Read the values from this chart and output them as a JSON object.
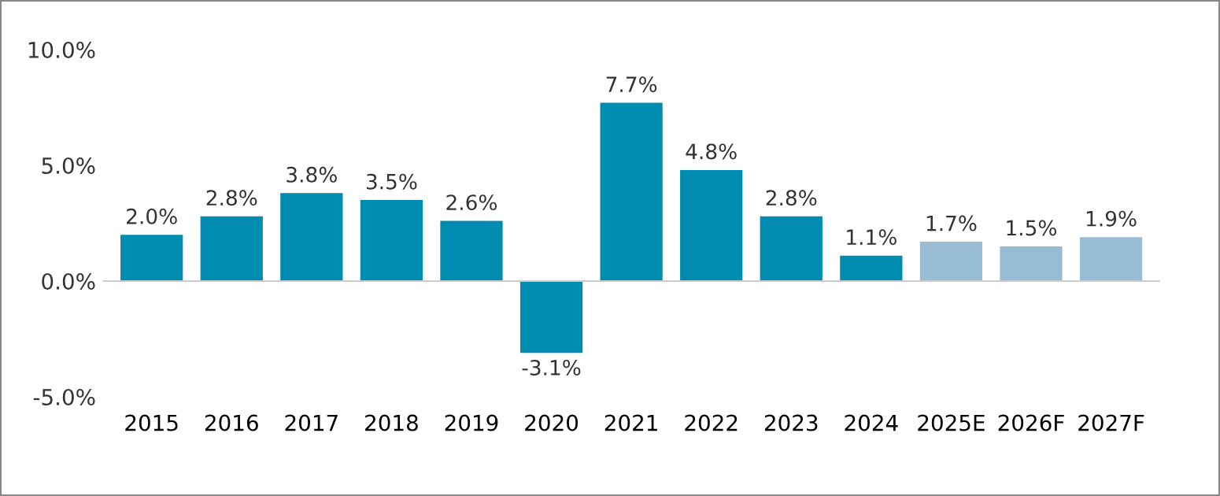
{
  "chart_data": {
    "type": "bar",
    "categories": [
      "2015",
      "2016",
      "2017",
      "2018",
      "2019",
      "2020",
      "2021",
      "2022",
      "2023",
      "2024",
      "2025E",
      "2026F",
      "2027F"
    ],
    "values": [
      2.0,
      2.8,
      3.8,
      3.5,
      2.6,
      -3.1,
      7.7,
      4.8,
      2.8,
      1.1,
      1.7,
      1.5,
      1.9
    ],
    "colors": [
      "#008bb0",
      "#008bb0",
      "#008bb0",
      "#008bb0",
      "#008bb0",
      "#008bb0",
      "#008bb0",
      "#008bb0",
      "#008bb0",
      "#008bb0",
      "#98bcd4",
      "#98bcd4",
      "#98bcd4"
    ],
    "value_labels": [
      "2.0%",
      "2.8%",
      "3.8%",
      "3.5%",
      "2.6%",
      "-3.1%",
      "7.7%",
      "4.8%",
      "2.8%",
      "1.1%",
      "1.7%",
      "1.5%",
      "1.9%"
    ],
    "ylim": [
      -5,
      10
    ],
    "yticks": [
      {
        "value": -5,
        "label": "-5.0%"
      },
      {
        "value": 0,
        "label": "0.0%"
      },
      {
        "value": 5,
        "label": "5.0%"
      },
      {
        "value": 10,
        "label": "10.0%"
      }
    ]
  }
}
